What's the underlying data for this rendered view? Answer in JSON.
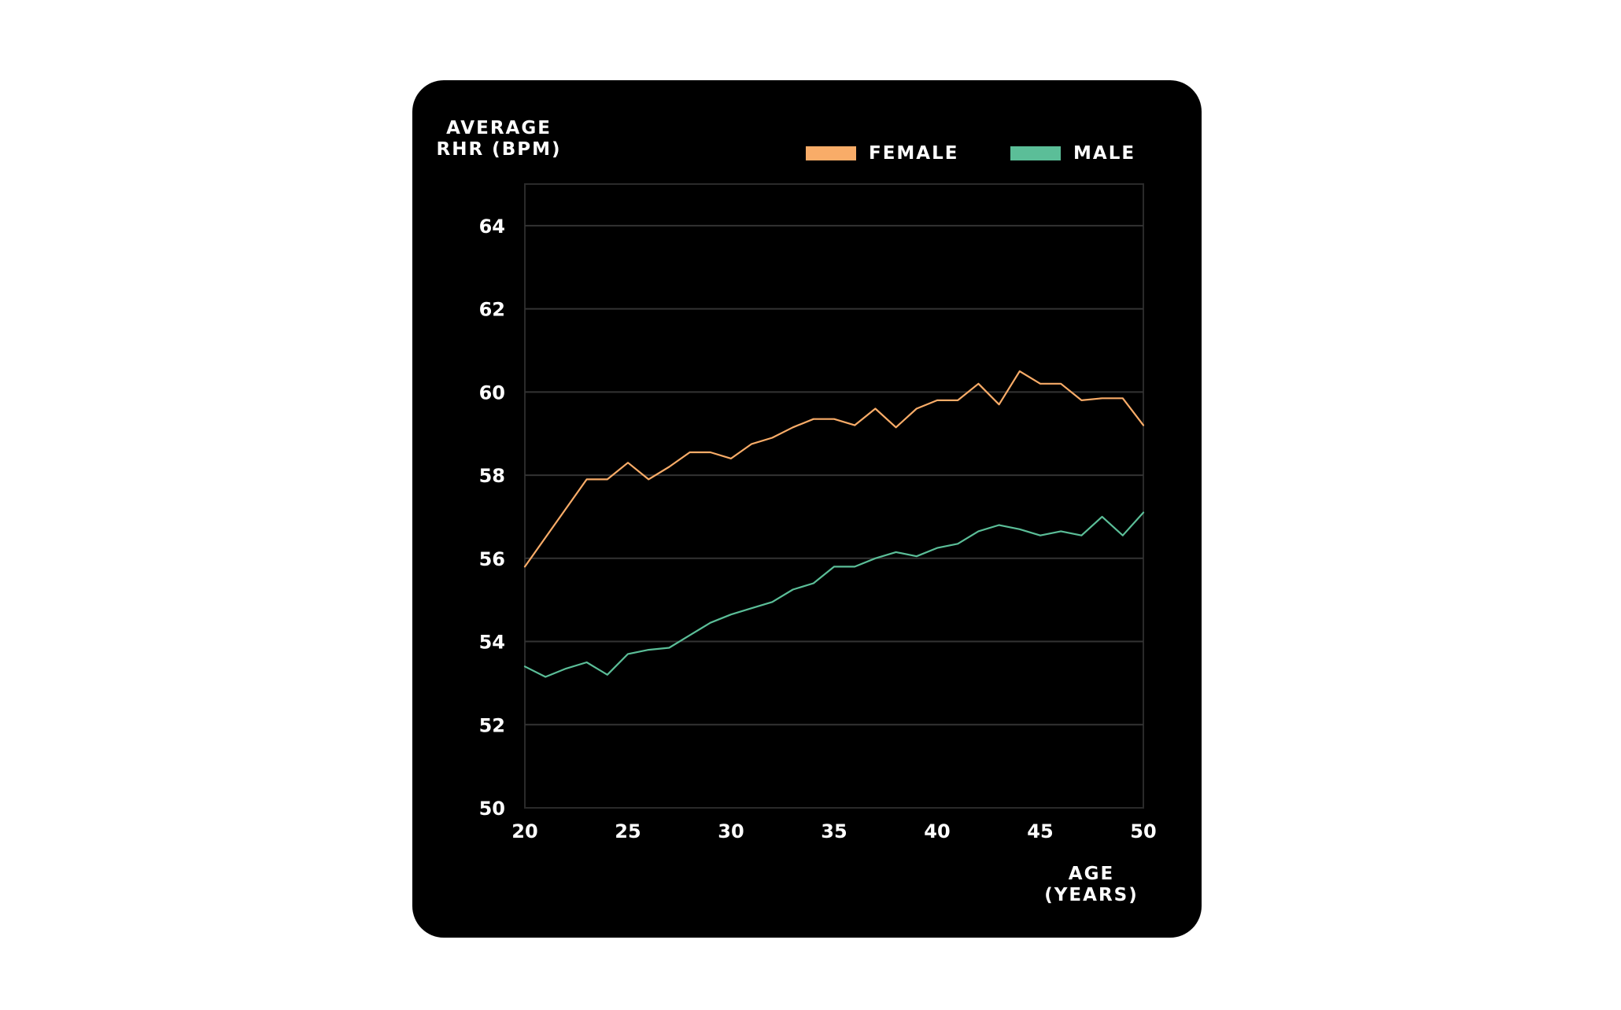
{
  "chart_data": {
    "type": "line",
    "ylabel": "AVERAGE RHR (BPM)",
    "xlabel": "AGE (YEARS)",
    "xlim": [
      20,
      50
    ],
    "ylim": [
      50,
      65
    ],
    "xticks": [
      20,
      25,
      30,
      35,
      40,
      45,
      50
    ],
    "yticks": [
      50,
      52,
      54,
      56,
      58,
      60,
      62,
      64
    ],
    "grid": true,
    "legend_position": "top-right",
    "x": [
      20,
      21,
      22,
      23,
      24,
      25,
      26,
      27,
      28,
      29,
      30,
      31,
      32,
      33,
      34,
      35,
      36,
      37,
      38,
      39,
      40,
      41,
      42,
      43,
      44,
      45,
      46,
      47,
      48,
      49,
      50
    ],
    "series": [
      {
        "name": "FEMALE",
        "color": "#F9AC68",
        "values": [
          55.8,
          56.5,
          57.2,
          57.9,
          57.9,
          58.3,
          57.9,
          58.2,
          58.55,
          58.55,
          58.4,
          58.75,
          58.9,
          59.15,
          59.35,
          59.35,
          59.2,
          59.6,
          59.15,
          59.6,
          59.8,
          59.8,
          60.2,
          59.7,
          60.5,
          60.2,
          60.2,
          59.8,
          59.85,
          59.85,
          59.2
        ]
      },
      {
        "name": "MALE",
        "color": "#5BBE98",
        "values": [
          53.4,
          53.15,
          53.35,
          53.5,
          53.2,
          53.7,
          53.8,
          53.85,
          54.15,
          54.45,
          54.65,
          54.8,
          54.95,
          55.25,
          55.4,
          55.8,
          55.8,
          56.0,
          56.15,
          56.05,
          56.25,
          56.35,
          56.65,
          56.8,
          56.7,
          56.55,
          56.65,
          56.55,
          57.0,
          56.55,
          57.1
        ]
      }
    ]
  }
}
